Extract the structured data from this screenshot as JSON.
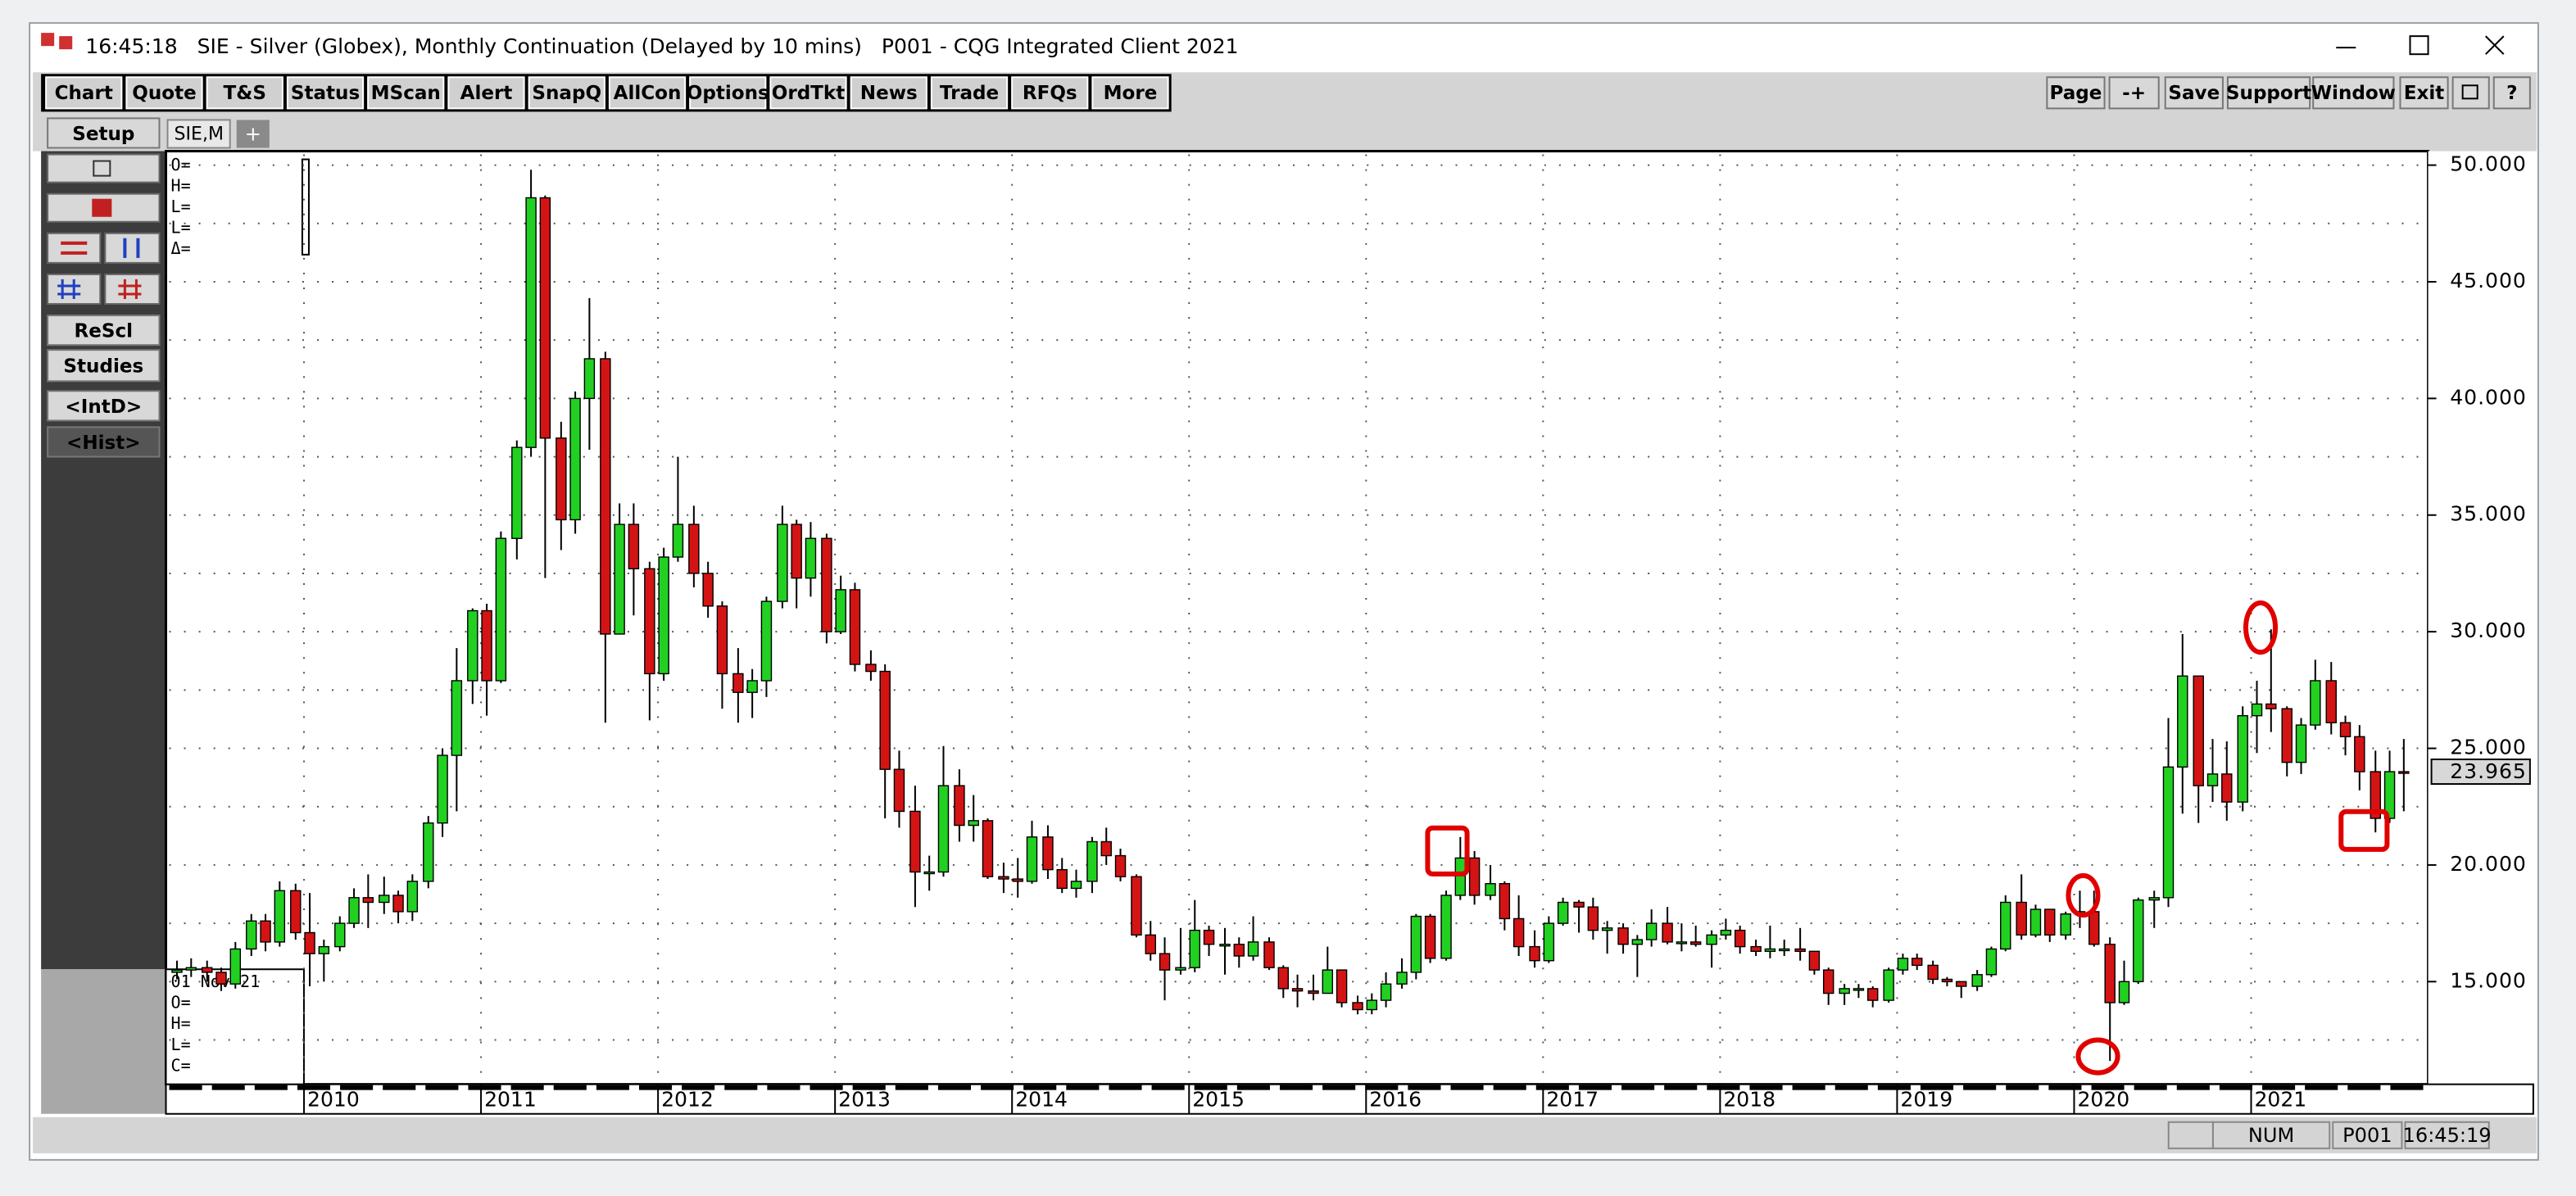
{
  "ui": {
    "title_bar": "16:45:18   SIE - Silver (Globex), Monthly Continuation (Delayed by 10 mins)   P001 - CQG Integrated Client 2021",
    "toolbar": [
      "Chart",
      "Quote",
      "T&S",
      "Status",
      "MScan",
      "Alert",
      "SnapQ",
      "AllCon",
      "Options",
      "OrdTkt",
      "News",
      "Trade",
      "RFQs",
      "More"
    ],
    "right_buttons": [
      "Page",
      "-+",
      "Save",
      "Support",
      "Window",
      "Exit",
      "?"
    ],
    "side_buttons": [
      "Setup",
      "ReScl",
      "Studies",
      "<IntD>",
      "<Hist>"
    ],
    "tab": "SIE,M",
    "tab_add": "+",
    "data_box": [
      "O=",
      "H=",
      "L=",
      "L=",
      "Δ="
    ],
    "cursor_box": [
      "01 Nov 21",
      "O=",
      "H=",
      "L=",
      "C="
    ],
    "status": [
      "NUM",
      "P001",
      "16:45:19"
    ]
  },
  "chart_data": {
    "type": "candlestick",
    "up_color": "#22d022",
    "down_color": "#d41414",
    "grid": true,
    "last_price": "23.965",
    "xlim": [
      2009.22,
      2022.0
    ],
    "xticks": [
      2010,
      2011,
      2012,
      2013,
      2014,
      2015,
      2016,
      2017,
      2018,
      2019,
      2020,
      2021
    ],
    "ylim": [
      10.6,
      50.6
    ],
    "yticks": [
      {
        "value": 15,
        "label": "15.000"
      },
      {
        "value": 20,
        "label": "20.000"
      },
      {
        "value": 25,
        "label": "25.000"
      },
      {
        "value": 30,
        "label": "30.000"
      },
      {
        "value": 35,
        "label": "35.000"
      },
      {
        "value": 40,
        "label": "40.000"
      },
      {
        "value": 45,
        "label": "45.000"
      },
      {
        "value": 50,
        "label": "50.000"
      }
    ],
    "ygrid_minor": [
      12.5,
      17.5,
      22.5,
      27.5,
      32.5,
      37.5,
      42.5,
      47.5
    ],
    "x": [
      2009.25,
      2009.33,
      2009.42,
      2009.5,
      2009.58,
      2009.67,
      2009.75,
      2009.83,
      2009.92,
      2010,
      2010.08,
      2010.17,
      2010.25,
      2010.33,
      2010.42,
      2010.5,
      2010.58,
      2010.67,
      2010.75,
      2010.83,
      2010.92,
      2011,
      2011.08,
      2011.17,
      2011.25,
      2011.33,
      2011.42,
      2011.5,
      2011.58,
      2011.67,
      2011.75,
      2011.83,
      2011.92,
      2012,
      2012.08,
      2012.17,
      2012.25,
      2012.33,
      2012.42,
      2012.5,
      2012.58,
      2012.67,
      2012.75,
      2012.83,
      2012.92,
      2013,
      2013.08,
      2013.17,
      2013.25,
      2013.33,
      2013.42,
      2013.5,
      2013.58,
      2013.67,
      2013.75,
      2013.83,
      2013.92,
      2014,
      2014.08,
      2014.17,
      2014.25,
      2014.33,
      2014.42,
      2014.5,
      2014.58,
      2014.67,
      2014.75,
      2014.83,
      2014.92,
      2015,
      2015.08,
      2015.17,
      2015.25,
      2015.33,
      2015.42,
      2015.5,
      2015.58,
      2015.67,
      2015.75,
      2015.83,
      2015.92,
      2016,
      2016.08,
      2016.17,
      2016.25,
      2016.33,
      2016.42,
      2016.5,
      2016.58,
      2016.67,
      2016.75,
      2016.83,
      2016.92,
      2017,
      2017.08,
      2017.17,
      2017.25,
      2017.33,
      2017.42,
      2017.5,
      2017.58,
      2017.67,
      2017.75,
      2017.83,
      2017.92,
      2018,
      2018.08,
      2018.17,
      2018.25,
      2018.33,
      2018.42,
      2018.5,
      2018.58,
      2018.67,
      2018.75,
      2018.83,
      2018.92,
      2019,
      2019.08,
      2019.17,
      2019.25,
      2019.33,
      2019.42,
      2019.5,
      2019.58,
      2019.67,
      2019.75,
      2019.83,
      2019.92,
      2020,
      2020.08,
      2020.17,
      2020.25,
      2020.33,
      2020.42,
      2020.5,
      2020.58,
      2020.67,
      2020.75,
      2020.83,
      2020.92,
      2021,
      2021.08,
      2021.17,
      2021.25,
      2021.33,
      2021.42,
      2021.5,
      2021.58,
      2021.67,
      2021.75,
      2021.83
    ],
    "open": [
      15.4,
      15.5,
      15.6,
      15.4,
      14.9,
      16.4,
      17.6,
      16.7,
      18.9,
      17.1,
      16.2,
      16.5,
      17.5,
      18.6,
      18.4,
      18.7,
      18.0,
      19.3,
      21.8,
      24.7,
      27.9,
      30.9,
      27.9,
      34.0,
      37.9,
      48.6,
      38.3,
      34.8,
      40.0,
      41.7,
      29.9,
      34.6,
      32.7,
      28.2,
      33.2,
      34.6,
      32.5,
      31.1,
      28.2,
      27.4,
      27.9,
      31.3,
      34.6,
      32.3,
      34.0,
      30.0,
      31.8,
      28.6,
      28.3,
      24.1,
      22.3,
      19.7,
      19.7,
      23.4,
      21.7,
      21.9,
      19.5,
      19.4,
      19.3,
      21.2,
      19.8,
      19.0,
      19.3,
      21.0,
      20.4,
      19.5,
      17.0,
      16.2,
      15.5,
      15.6,
      17.2,
      16.6,
      16.6,
      16.1,
      16.7,
      15.6,
      14.7,
      14.6,
      14.5,
      15.5,
      14.1,
      13.8,
      14.2,
      14.9,
      15.4,
      17.8,
      16.0,
      18.7,
      20.3,
      18.7,
      19.2,
      17.7,
      16.5,
      15.9,
      17.5,
      18.4,
      18.2,
      17.2,
      17.3,
      16.6,
      16.8,
      17.5,
      16.7,
      16.7,
      16.6,
      17.0,
      17.2,
      16.5,
      16.3,
      16.4,
      16.4,
      16.3,
      15.5,
      14.5,
      14.7,
      14.7,
      14.2,
      15.5,
      16.0,
      15.7,
      15.1,
      15.0,
      14.8,
      15.3,
      16.4,
      18.4,
      17.0,
      18.1,
      17.0,
      17.9,
      18.0,
      16.6,
      14.1,
      15.0,
      18.5,
      18.6,
      24.2,
      28.1,
      23.4,
      23.9,
      22.7,
      26.4,
      26.9,
      26.7,
      24.4,
      26.0,
      27.9,
      26.1,
      25.5,
      24.0,
      22.0,
      24.0
    ],
    "high": [
      15.9,
      16.0,
      15.9,
      15.6,
      16.7,
      17.9,
      17.9,
      19.3,
      19.2,
      18.8,
      16.8,
      17.8,
      19.0,
      19.6,
      19.5,
      18.9,
      19.6,
      22.1,
      25.0,
      29.3,
      31.0,
      31.2,
      34.3,
      38.2,
      49.8,
      48.7,
      39.0,
      40.3,
      44.3,
      42.0,
      35.5,
      35.5,
      33.0,
      33.6,
      37.5,
      35.4,
      33.0,
      31.3,
      29.3,
      28.4,
      31.5,
      35.4,
      34.8,
      34.7,
      34.2,
      32.4,
      32.1,
      29.2,
      28.6,
      24.9,
      23.4,
      20.4,
      25.1,
      24.1,
      23.0,
      22.0,
      20.1,
      20.3,
      21.9,
      21.7,
      20.3,
      19.8,
      21.2,
      21.6,
      20.7,
      19.6,
      17.6,
      16.9,
      17.3,
      18.5,
      17.4,
      17.3,
      16.9,
      17.8,
      16.9,
      15.7,
      15.3,
      15.3,
      16.5,
      15.5,
      14.4,
      14.5,
      15.4,
      16.0,
      17.9,
      17.9,
      18.9,
      21.2,
      20.6,
      20.0,
      19.3,
      18.7,
      17.2,
      17.8,
      18.6,
      18.5,
      18.6,
      17.6,
      17.5,
      17.0,
      18.1,
      18.2,
      17.5,
      17.4,
      17.2,
      17.7,
      17.4,
      16.8,
      17.4,
      16.8,
      17.3,
      16.3,
      15.6,
      14.9,
      14.9,
      14.8,
      15.6,
      16.2,
      16.2,
      15.9,
      15.2,
      15.0,
      15.5,
      16.5,
      18.7,
      19.6,
      18.3,
      18.1,
      18.0,
      18.9,
      18.9,
      16.9,
      15.9,
      18.6,
      18.9,
      26.3,
      29.9,
      28.1,
      25.4,
      25.3,
      26.8,
      27.9,
      30.1,
      26.8,
      26.3,
      28.8,
      28.7,
      26.4,
      26.0,
      24.9,
      24.9,
      25.4
    ],
    "low": [
      15.1,
      15.2,
      15.0,
      14.6,
      14.7,
      16.1,
      16.3,
      16.5,
      16.8,
      14.8,
      15.0,
      16.3,
      17.3,
      17.3,
      17.9,
      17.5,
      17.6,
      19.0,
      21.2,
      22.3,
      26.9,
      26.4,
      27.8,
      33.1,
      37.5,
      32.3,
      33.5,
      34.2,
      37.8,
      26.1,
      30.0,
      30.7,
      26.2,
      27.9,
      33.0,
      31.9,
      30.6,
      26.7,
      26.1,
      26.3,
      27.2,
      31.0,
      31.0,
      31.5,
      29.5,
      29.9,
      28.3,
      27.9,
      22.0,
      21.6,
      18.2,
      18.9,
      19.5,
      21.0,
      21.0,
      19.4,
      18.8,
      18.6,
      19.2,
      19.4,
      18.8,
      18.6,
      18.8,
      20.0,
      19.3,
      16.9,
      15.9,
      14.2,
      15.3,
      15.4,
      16.1,
      15.3,
      15.6,
      15.9,
      15.5,
      14.3,
      13.9,
      14.2,
      14.5,
      13.9,
      13.6,
      13.6,
      13.9,
      14.7,
      15.1,
      15.8,
      15.9,
      18.5,
      18.3,
      18.5,
      17.2,
      16.1,
      15.6,
      15.8,
      17.4,
      17.1,
      16.8,
      16.2,
      16.2,
      15.2,
      16.5,
      16.6,
      16.3,
      16.5,
      15.6,
      16.8,
      16.2,
      16.1,
      16.0,
      16.1,
      15.9,
      15.3,
      14.0,
      14.0,
      14.3,
      13.9,
      14.1,
      15.3,
      15.5,
      14.9,
      14.8,
      14.3,
      14.6,
      15.2,
      16.3,
      16.8,
      16.9,
      16.7,
      16.8,
      17.3,
      16.5,
      11.6,
      14.0,
      14.9,
      17.3,
      18.2,
      22.2,
      21.8,
      22.7,
      21.9,
      22.3,
      24.8,
      25.7,
      23.8,
      23.9,
      25.8,
      25.6,
      24.7,
      23.2,
      21.4,
      21.8,
      22.3
    ],
    "close": [
      15.5,
      15.6,
      15.4,
      14.9,
      16.4,
      17.6,
      16.7,
      18.9,
      17.1,
      16.2,
      16.5,
      17.5,
      18.6,
      18.4,
      18.7,
      18.0,
      19.3,
      21.8,
      24.7,
      27.9,
      30.9,
      27.9,
      34.0,
      37.9,
      48.6,
      38.3,
      34.8,
      40.0,
      41.7,
      29.9,
      34.6,
      32.7,
      28.2,
      33.2,
      34.6,
      32.5,
      31.1,
      28.2,
      27.4,
      27.9,
      31.3,
      34.6,
      32.3,
      34.0,
      30.0,
      31.8,
      28.6,
      28.3,
      24.1,
      22.3,
      19.7,
      19.7,
      23.4,
      21.7,
      21.9,
      19.5,
      19.4,
      19.3,
      21.2,
      19.8,
      19.0,
      19.3,
      21.0,
      20.4,
      19.5,
      17.0,
      16.2,
      15.5,
      15.6,
      17.2,
      16.6,
      16.6,
      16.1,
      16.7,
      15.6,
      14.7,
      14.6,
      14.5,
      15.5,
      14.1,
      13.8,
      14.2,
      14.9,
      15.4,
      17.8,
      16.0,
      18.7,
      20.3,
      18.7,
      19.2,
      17.7,
      16.5,
      15.9,
      17.5,
      18.4,
      18.2,
      17.2,
      17.3,
      16.6,
      16.8,
      17.5,
      16.7,
      16.7,
      16.6,
      17.0,
      17.2,
      16.5,
      16.3,
      16.4,
      16.4,
      16.3,
      15.5,
      14.5,
      14.7,
      14.7,
      14.2,
      15.5,
      16.0,
      15.7,
      15.1,
      15.0,
      14.8,
      15.3,
      16.4,
      18.4,
      17.0,
      18.1,
      17.0,
      17.9,
      18.0,
      16.6,
      14.1,
      15.0,
      18.5,
      18.6,
      24.2,
      28.1,
      23.4,
      23.9,
      22.7,
      26.4,
      26.9,
      26.7,
      24.4,
      26.0,
      27.9,
      26.1,
      25.5,
      24.0,
      22.0,
      24.0,
      23.965
    ]
  }
}
